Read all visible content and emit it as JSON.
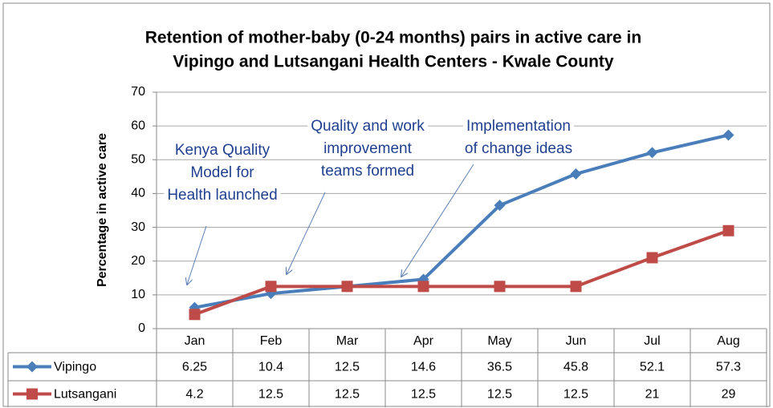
{
  "chart_data": {
    "type": "line",
    "title": [
      "Retention of mother-baby (0-24 months) pairs in active care in",
      "Vipingo and Lutsangani Health Centers - Kwale County"
    ],
    "y_label": "Percentage in active care",
    "categories": [
      "Jan",
      "Feb",
      "Mar",
      "Apr",
      "May",
      "Jun",
      "Jul",
      "Aug"
    ],
    "series": [
      {
        "name": "Vipingo",
        "color": "#4a7ebb",
        "marker": "diamond",
        "values": [
          6.25,
          10.4,
          12.5,
          14.6,
          36.5,
          45.8,
          52.1,
          57.3
        ]
      },
      {
        "name": "Lutsangani",
        "color": "#be4b48",
        "marker": "square",
        "values": [
          4.2,
          12.5,
          12.5,
          12.5,
          12.5,
          12.5,
          21,
          29
        ]
      }
    ],
    "ylim": [
      0,
      70
    ],
    "yticks": [
      0,
      10,
      20,
      30,
      40,
      50,
      60,
      70
    ],
    "grid": true,
    "annotations": [
      {
        "lines": [
          "Kenya Quality",
          "Model for",
          "Health launched"
        ]
      },
      {
        "lines": [
          "Quality and work",
          "improvement",
          "teams formed"
        ]
      },
      {
        "lines": [
          "Implementation",
          "of change ideas"
        ]
      }
    ]
  }
}
